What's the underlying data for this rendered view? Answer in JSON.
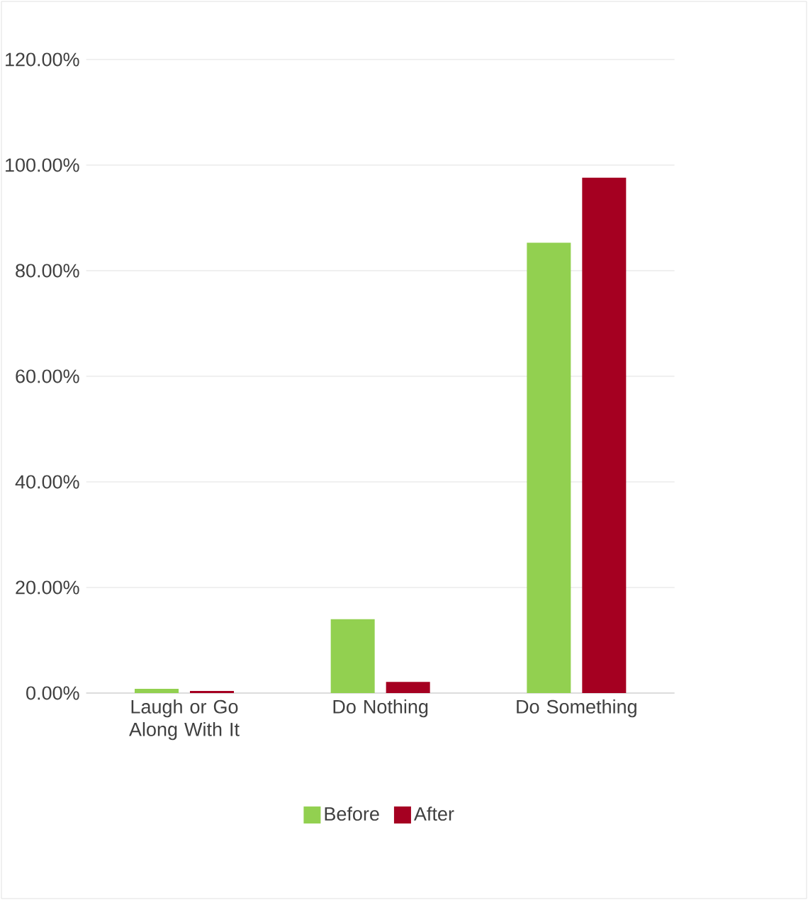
{
  "chart_data": {
    "type": "bar",
    "categories": [
      "Laugh or Go Along With It",
      "Do Nothing",
      "Do Something"
    ],
    "series": [
      {
        "name": "Before",
        "color": "#92d050",
        "values": [
          0.8,
          14.0,
          85.3
        ]
      },
      {
        "name": "After",
        "color": "#a50021",
        "values": [
          0.4,
          2.1,
          97.6
        ]
      }
    ],
    "ylim": [
      0,
      120
    ],
    "yticks": [
      {
        "value": 0,
        "label": "0.00%"
      },
      {
        "value": 20,
        "label": "20.00%"
      },
      {
        "value": 40,
        "label": "40.00%"
      },
      {
        "value": 60,
        "label": "60.00%"
      },
      {
        "value": 80,
        "label": "80.00%"
      },
      {
        "value": 100,
        "label": "100.00%"
      },
      {
        "value": 120,
        "label": "120.00%"
      }
    ],
    "grid": "y",
    "legend": "bottom"
  }
}
